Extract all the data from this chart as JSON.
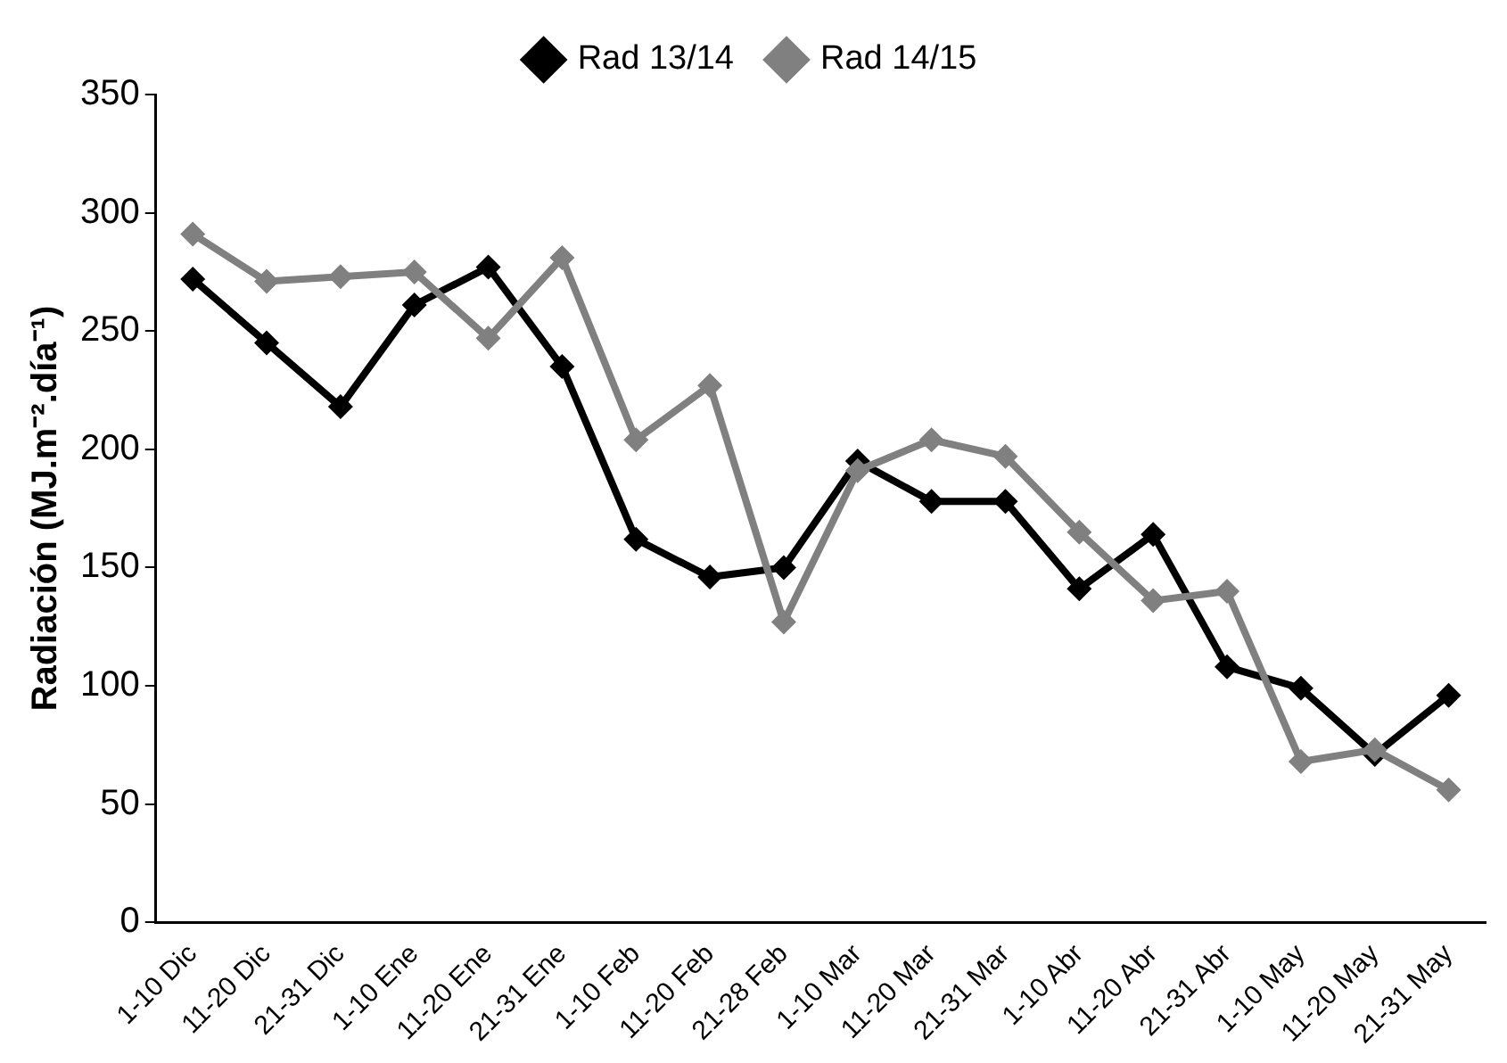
{
  "chart_data": {
    "type": "line",
    "ylabel": "Radiación (MJ.m⁻².día⁻¹)",
    "categories": [
      "1-10 Dic",
      "11-20 Dic",
      "21-31 Dic",
      "1-10 Ene",
      "11-20 Ene",
      "21-31 Ene",
      "1-10 Feb",
      "11-20 Feb",
      "21-28 Feb",
      "1-10 Mar",
      "11-20 Mar",
      "21-31 Mar",
      "1-10 Abr",
      "11-20 Abr",
      "21-31 Abr",
      "1-10 May",
      "11-20 May",
      "21-31 May"
    ],
    "series": [
      {
        "name": "Rad 13/14",
        "color": "#000000",
        "values": [
          272,
          245,
          218,
          261,
          277,
          235,
          162,
          146,
          150,
          195,
          178,
          178,
          141,
          164,
          108,
          99,
          71,
          96
        ]
      },
      {
        "name": "Rad 14/15",
        "color": "#808080",
        "values": [
          291,
          271,
          273,
          275,
          247,
          281,
          204,
          227,
          127,
          191,
          204,
          197,
          165,
          136,
          140,
          68,
          73,
          56
        ]
      }
    ],
    "ylim": [
      0,
      350
    ],
    "yticks": [
      0,
      50,
      100,
      150,
      200,
      250,
      300,
      350
    ],
    "grid": false,
    "legend": "top",
    "marker": "diamond",
    "line_style": "solid"
  }
}
